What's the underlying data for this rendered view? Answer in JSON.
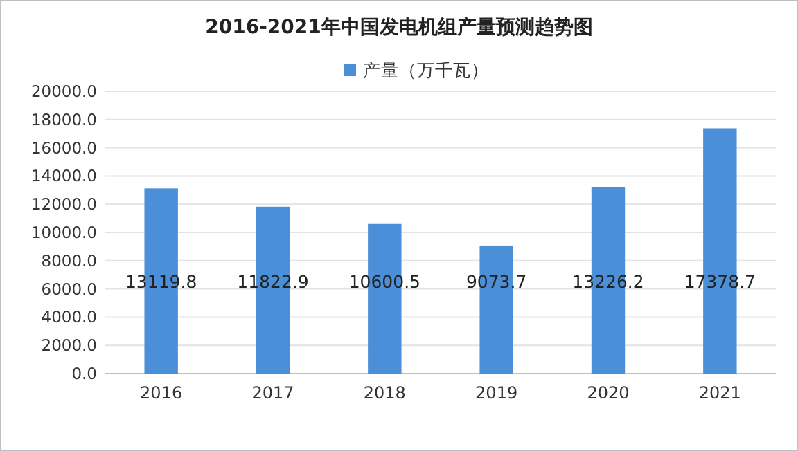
{
  "chart_data": {
    "type": "bar",
    "title": "2016-2021年中国发电机组产量预测趋势图",
    "categories": [
      "2016",
      "2017",
      "2018",
      "2019",
      "2020",
      "2021"
    ],
    "series": [
      {
        "name": "产量（万千瓦）",
        "color": "#4a8fd8",
        "values": [
          13119.8,
          11822.9,
          10600.5,
          9073.7,
          13226.2,
          17378.7
        ]
      }
    ],
    "ylim": [
      0,
      20000
    ],
    "yticks": [
      {
        "value": 0,
        "label": "0.0"
      },
      {
        "value": 2000,
        "label": "2000.0"
      },
      {
        "value": 4000,
        "label": "4000.0"
      },
      {
        "value": 6000,
        "label": "6000.0"
      },
      {
        "value": 8000,
        "label": "8000.0"
      },
      {
        "value": 10000,
        "label": "10000.0"
      },
      {
        "value": 12000,
        "label": "12000.0"
      },
      {
        "value": 14000,
        "label": "14000.0"
      },
      {
        "value": 16000,
        "label": "16000.0"
      },
      {
        "value": 18000,
        "label": "18000.0"
      },
      {
        "value": 20000,
        "label": "20000.0"
      }
    ],
    "grid": "y",
    "legend": "top",
    "data_labels": true
  }
}
